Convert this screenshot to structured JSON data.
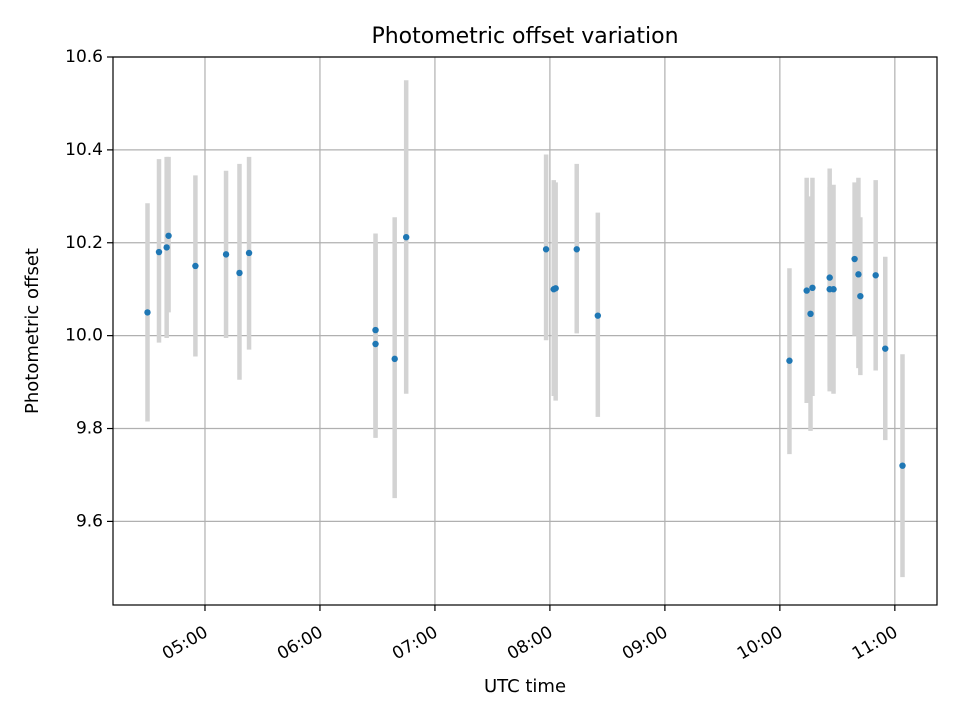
{
  "chart_data": {
    "type": "scatter",
    "title": "Photometric offset variation",
    "xlabel": "UTC time",
    "ylabel": "Photometric offset",
    "xlim": [
      "04:12",
      "11:22"
    ],
    "ylim": [
      9.42,
      10.6
    ],
    "grid": true,
    "x_ticks": [
      "05:00",
      "06:00",
      "07:00",
      "08:00",
      "09:00",
      "10:00",
      "11:00"
    ],
    "y_ticks": [
      9.6,
      9.8,
      10.0,
      10.2,
      10.4,
      10.6
    ],
    "colors": {
      "point": "#1f77b4",
      "error_bar": "#d3d3d3",
      "grid": "#b0b0b0",
      "axes": "#000000"
    },
    "series": [
      {
        "points": [
          {
            "x": "04:30",
            "y": 10.05,
            "low": 9.815,
            "high": 10.285
          },
          {
            "x": "04:36",
            "y": 10.18,
            "low": 9.985,
            "high": 10.38
          },
          {
            "x": "04:40",
            "y": 10.19,
            "low": 9.995,
            "high": 10.385
          },
          {
            "x": "04:41",
            "y": 10.215,
            "low": 10.05,
            "high": 10.385
          },
          {
            "x": "04:55",
            "y": 10.15,
            "low": 9.955,
            "high": 10.345
          },
          {
            "x": "05:11",
            "y": 10.175,
            "low": 9.995,
            "high": 10.355
          },
          {
            "x": "05:18",
            "y": 10.135,
            "low": 9.905,
            "high": 10.37
          },
          {
            "x": "05:23",
            "y": 10.178,
            "low": 9.97,
            "high": 10.385
          },
          {
            "x": "06:29",
            "y": 10.012,
            "low": 9.8,
            "high": 10.22
          },
          {
            "x": "06:29",
            "y": 9.982,
            "low": 9.78,
            "high": 10.2
          },
          {
            "x": "06:39",
            "y": 9.95,
            "low": 9.65,
            "high": 10.255
          },
          {
            "x": "06:45",
            "y": 10.212,
            "low": 9.875,
            "high": 10.55
          },
          {
            "x": "07:58",
            "y": 10.186,
            "low": 9.99,
            "high": 10.39
          },
          {
            "x": "08:02",
            "y": 10.1,
            "low": 9.87,
            "high": 10.335
          },
          {
            "x": "08:03",
            "y": 10.102,
            "low": 9.86,
            "high": 10.33
          },
          {
            "x": "08:14",
            "y": 10.186,
            "low": 10.005,
            "high": 10.37
          },
          {
            "x": "08:25",
            "y": 10.043,
            "low": 9.825,
            "high": 10.265
          },
          {
            "x": "10:05",
            "y": 9.946,
            "low": 9.745,
            "high": 10.145
          },
          {
            "x": "10:14",
            "y": 10.097,
            "low": 9.855,
            "high": 10.34
          },
          {
            "x": "10:16",
            "y": 10.047,
            "low": 9.795,
            "high": 10.3
          },
          {
            "x": "10:17",
            "y": 10.103,
            "low": 9.87,
            "high": 10.34
          },
          {
            "x": "10:26",
            "y": 10.125,
            "low": 9.89,
            "high": 10.36
          },
          {
            "x": "10:26",
            "y": 10.1,
            "low": 9.88,
            "high": 10.32
          },
          {
            "x": "10:28",
            "y": 10.1,
            "low": 9.875,
            "high": 10.325
          },
          {
            "x": "10:39",
            "y": 10.165,
            "low": 10.0,
            "high": 10.33
          },
          {
            "x": "10:41",
            "y": 10.132,
            "low": 9.93,
            "high": 10.34
          },
          {
            "x": "10:42",
            "y": 10.085,
            "low": 9.915,
            "high": 10.255
          },
          {
            "x": "10:50",
            "y": 10.13,
            "low": 9.925,
            "high": 10.335
          },
          {
            "x": "10:55",
            "y": 9.972,
            "low": 9.775,
            "high": 10.17
          },
          {
            "x": "11:04",
            "y": 9.72,
            "low": 9.48,
            "high": 9.96
          }
        ]
      }
    ]
  }
}
